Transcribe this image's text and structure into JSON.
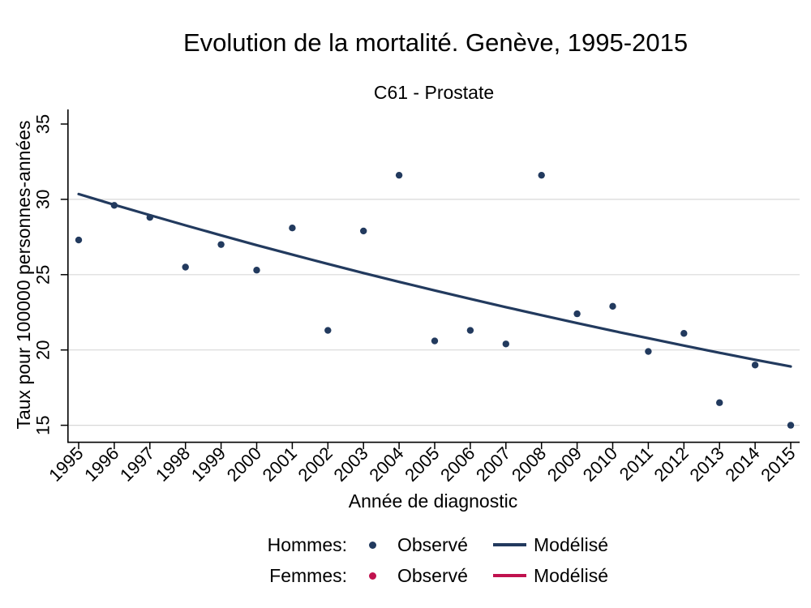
{
  "chart_data": {
    "type": "scatter",
    "title": "Evolution de la mortalité. Genève, 1995-2015",
    "subtitle": "C61 - Prostate",
    "xlabel": "Année de diagnostic",
    "ylabel": "Taux pour 100000 personnes-années",
    "x": [
      1995,
      1996,
      1997,
      1998,
      1999,
      2000,
      2001,
      2002,
      2003,
      2004,
      2005,
      2006,
      2007,
      2008,
      2009,
      2010,
      2011,
      2012,
      2013,
      2014,
      2015
    ],
    "series": [
      {
        "name": "Hommes: Observé",
        "style": "points",
        "color": "#223a5e",
        "values": [
          27.3,
          29.6,
          28.8,
          25.5,
          27.0,
          25.3,
          28.1,
          21.3,
          27.9,
          31.6,
          20.6,
          21.3,
          20.4,
          31.6,
          22.4,
          22.9,
          19.9,
          21.1,
          16.5,
          19.0,
          15.0
        ]
      },
      {
        "name": "Hommes: Modélisé",
        "style": "line",
        "color": "#223a5e",
        "values": [
          30.35,
          29.64,
          28.95,
          28.27,
          27.61,
          26.96,
          26.33,
          25.71,
          25.11,
          24.52,
          23.95,
          23.39,
          22.84,
          22.31,
          21.78,
          21.27,
          20.78,
          20.29,
          19.81,
          19.35,
          18.9
        ]
      },
      {
        "name": "Femmes: Observé",
        "style": "points",
        "color": "#c0114e",
        "values": []
      },
      {
        "name": "Femmes: Modélisé",
        "style": "line",
        "color": "#c0114e",
        "values": []
      }
    ],
    "ylim": [
      13.9,
      36.0
    ],
    "xlim": [
      1994.7,
      2015.25
    ],
    "y_ticks": [
      15,
      20,
      25,
      30,
      35
    ],
    "grid_y": [
      15,
      20,
      25,
      30
    ],
    "x_tick_angle": 45,
    "y_tick_angle": 90,
    "grid": "horizontal",
    "legend_position": "bottom"
  },
  "legend": {
    "rows": [
      {
        "group_label": "Hommes:",
        "observed_label": "Observé",
        "modeled_label": "Modélisé",
        "color": "#223a5e"
      },
      {
        "group_label": "Femmes:",
        "observed_label": "Observé",
        "modeled_label": "Modélisé",
        "color": "#c0114e"
      }
    ]
  },
  "colors": {
    "hommes": "#223a5e",
    "femmes": "#c0114e",
    "grid": "#d8d8d8",
    "axis": "#000000",
    "background": "#ffffff"
  }
}
